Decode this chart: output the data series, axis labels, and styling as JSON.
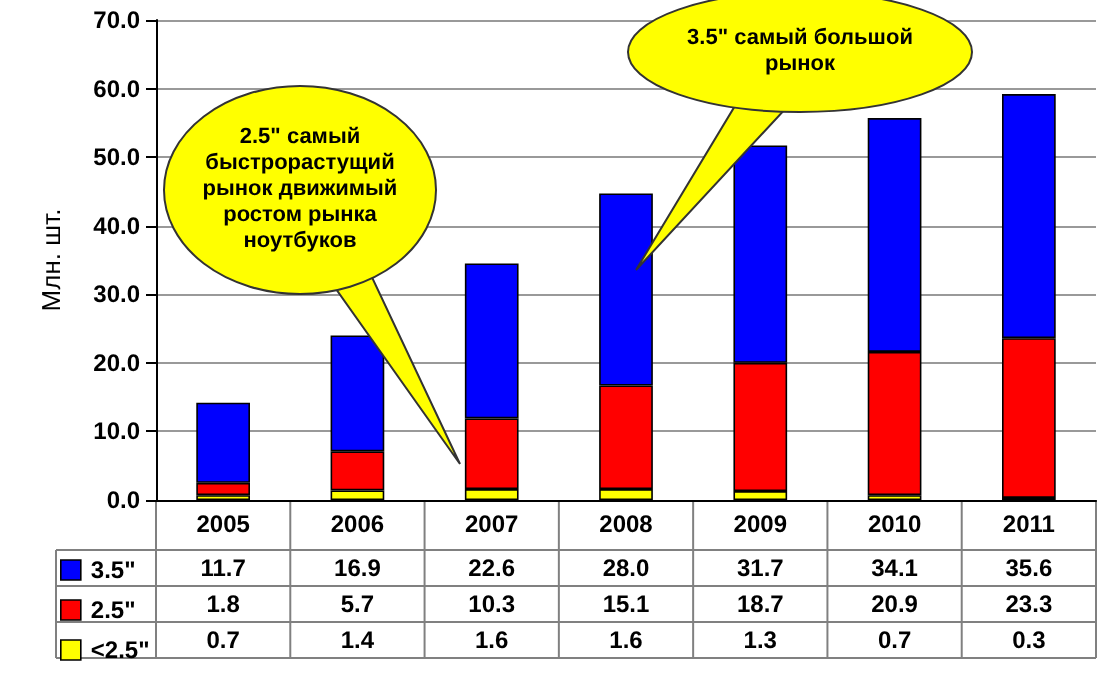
{
  "chart_data": {
    "type": "bar",
    "stacked": true,
    "ylabel": "Млн. шт.",
    "categories": [
      "2005",
      "2006",
      "2007",
      "2008",
      "2009",
      "2010",
      "2011"
    ],
    "series": [
      {
        "name": "<2.5\"",
        "color": "#ffff00",
        "values": [
          0.7,
          1.4,
          1.6,
          1.6,
          1.3,
          0.7,
          0.3
        ],
        "value_labels": [
          "0.7",
          "1.4",
          "1.6",
          "1.6",
          "1.3",
          "0.7",
          "0.3"
        ]
      },
      {
        "name": "2.5\"",
        "color": "#ff0000",
        "values": [
          1.8,
          5.7,
          10.3,
          15.1,
          18.7,
          20.9,
          23.3
        ],
        "value_labels": [
          "1.8",
          "5.7",
          "10.3",
          "15.1",
          "18.7",
          "20.9",
          "23.3"
        ]
      },
      {
        "name": "3.5\"",
        "color": "#0000ff",
        "values": [
          11.7,
          16.9,
          22.6,
          28.0,
          31.7,
          34.1,
          35.6
        ],
        "value_labels": [
          "11.7",
          "16.9",
          "22.6",
          "28.0",
          "31.7",
          "34.1",
          "35.6"
        ]
      }
    ],
    "ylim": [
      0,
      70
    ],
    "yticks": [
      {
        "value": 0,
        "label": "0.0"
      },
      {
        "value": 10,
        "label": "10.0"
      },
      {
        "value": 20,
        "label": "20.0"
      },
      {
        "value": 30,
        "label": "30.0"
      },
      {
        "value": 40,
        "label": "40.0"
      },
      {
        "value": 50,
        "label": "50.0"
      },
      {
        "value": 60,
        "label": "60.0"
      },
      {
        "value": 70,
        "label": "70.0"
      }
    ],
    "grid": "y",
    "legend": "bottom left",
    "annotations": [
      "2.5\" самый быстрорастущий рынок движимый ростом рынка ноутбуков",
      "3.5\" самый большой рынок"
    ]
  }
}
